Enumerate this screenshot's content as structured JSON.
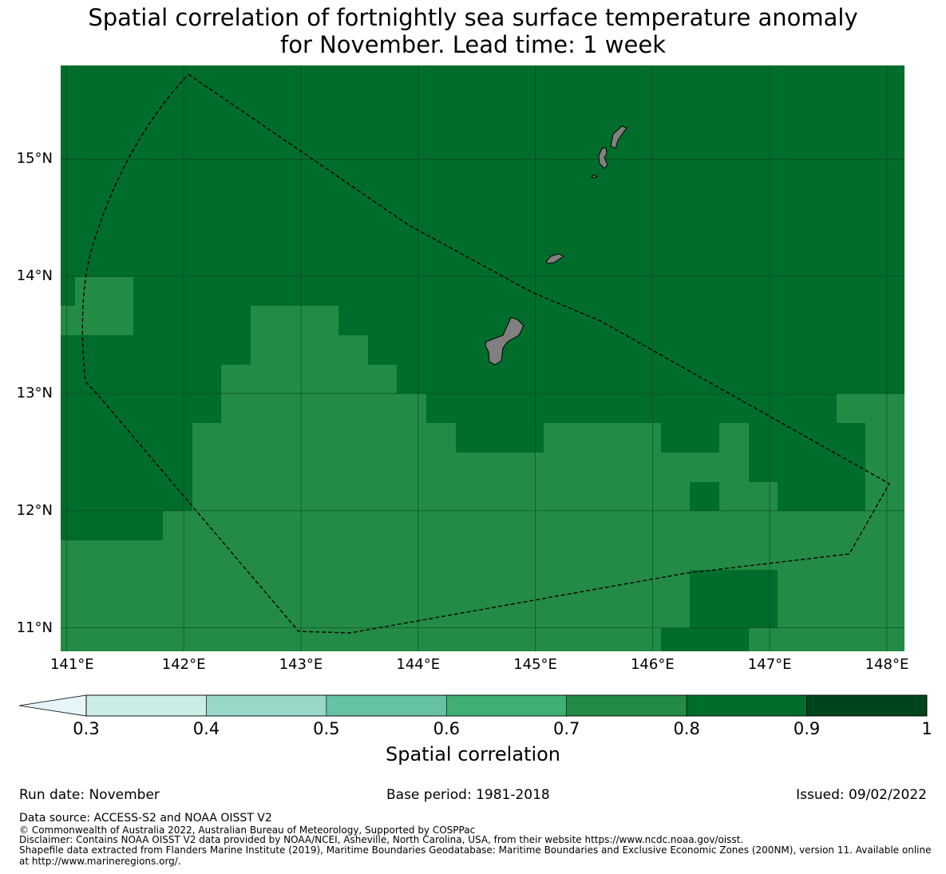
{
  "title": {
    "line1": "Spatial correlation of fortnightly sea surface temperature anomaly",
    "line2": "for November. Lead time: 1 week"
  },
  "map": {
    "background_level": 0.8,
    "colors": {
      "ocean_level_0.7_0.8": "#238b45",
      "ocean_level_0.8_0.9": "#006d2c",
      "land": "#808080",
      "eez_line": "#000000",
      "gridline": "#0b3d1c"
    },
    "lat_labels": [
      "15°N",
      "14°N",
      "13°N",
      "12°N",
      "11°N"
    ],
    "lon_labels": [
      "141°E",
      "142°E",
      "143°E",
      "144°E",
      "145°E",
      "146°E",
      "147°E",
      "148°E"
    ],
    "lat_values": [
      15,
      14,
      13,
      12,
      11
    ],
    "lon_values": [
      141,
      142,
      143,
      144,
      145,
      146,
      147,
      148
    ],
    "extent": {
      "lon_min": 140.95,
      "lon_max": 148.15,
      "lat_min": 10.8,
      "lat_max": 15.8
    }
  },
  "colorbar": {
    "ticks": [
      "0.3",
      "0.4",
      "0.5",
      "0.6",
      "0.7",
      "0.8",
      "0.9",
      "1"
    ],
    "colors": [
      "#ccece6",
      "#99d8c9",
      "#66c2a4",
      "#41ae76",
      "#238b45",
      "#006d2c",
      "#00441b"
    ],
    "extend_color": "#e5f5f9",
    "label": "Spatial correlation"
  },
  "footer": {
    "run_date": "Run date: November",
    "base_period": "Base period: 1981-2018",
    "issued": "Issued: 09/02/2022",
    "data_source": "Data source: ACCESS-S2 and NOAA OISST V2",
    "copyright": "© Commonwealth of Australia 2022, Australian Bureau of Meteorology, Supported by COSPPac",
    "disclaimer": "Disclaimer: Contains NOAA OISST V2 data provided by NOAA/NCEI, Asheville, North Carolina, USA, from their website https://www.ncdc.noaa.gov/oisst.",
    "shapefile_line1": "Shapefile data extracted from Flanders Marine Institute (2019), Maritime Boundaries Geodatabase: Maritime Boundaries and Exclusive Economic Zones (200NM), version 11. Available online",
    "shapefile_line2": "at http://www.marineregions.org/."
  }
}
